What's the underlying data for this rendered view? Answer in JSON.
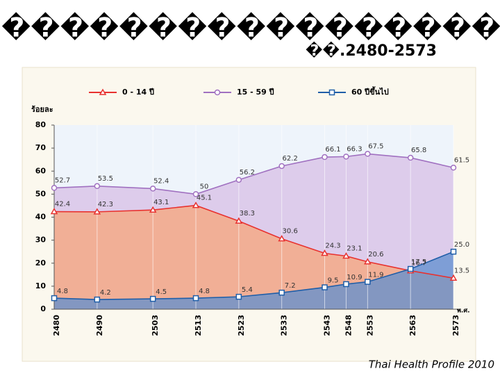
{
  "header": {
    "title": "��������������������",
    "subtitle": "��.2480-2573"
  },
  "footer": "Thai Health Profile 2010",
  "chart_data": {
    "type": "line",
    "ylabel": "ร้อยละ",
    "xlabel": "พ.ศ.",
    "x": [
      2480,
      2490,
      2503,
      2513,
      2523,
      2533,
      2543,
      2548,
      2553,
      2563,
      2573
    ],
    "xlim": [
      2480,
      2573
    ],
    "xticks": [
      2480,
      2490,
      2503,
      2513,
      2523,
      2533,
      2543,
      2548,
      2553,
      2563,
      2573
    ],
    "ylim": [
      0,
      80
    ],
    "yticks": [
      0,
      10,
      20,
      30,
      40,
      50,
      60,
      70,
      80
    ],
    "legend": "top",
    "series": [
      {
        "name": "0 - 14 ปี",
        "color": "#e8312f",
        "marker": "triangle",
        "values": [
          42.4,
          42.3,
          43.1,
          45.1,
          38.3,
          30.6,
          24.3,
          23.1,
          20.6,
          16.7,
          13.5
        ]
      },
      {
        "name": "15 - 59 ปี",
        "color": "#a070c0",
        "marker": "circle",
        "values": [
          52.7,
          53.5,
          52.4,
          50,
          56.2,
          62.2,
          66.1,
          66.3,
          67.5,
          65.8,
          61.5
        ]
      },
      {
        "name": "60 ปีขึ้นไป",
        "color": "#1f5ea8",
        "marker": "square",
        "values": [
          4.8,
          4.2,
          4.5,
          4.8,
          5.4,
          7.2,
          9.5,
          10.9,
          11.9,
          17.5,
          25.0
        ],
        "value_labels": [
          "4.8",
          "4.2",
          "4.5",
          "4.8",
          "5.4",
          "7.2",
          "9.5",
          "10.9",
          "11.9",
          "17.5",
          "25.0"
        ]
      }
    ]
  }
}
